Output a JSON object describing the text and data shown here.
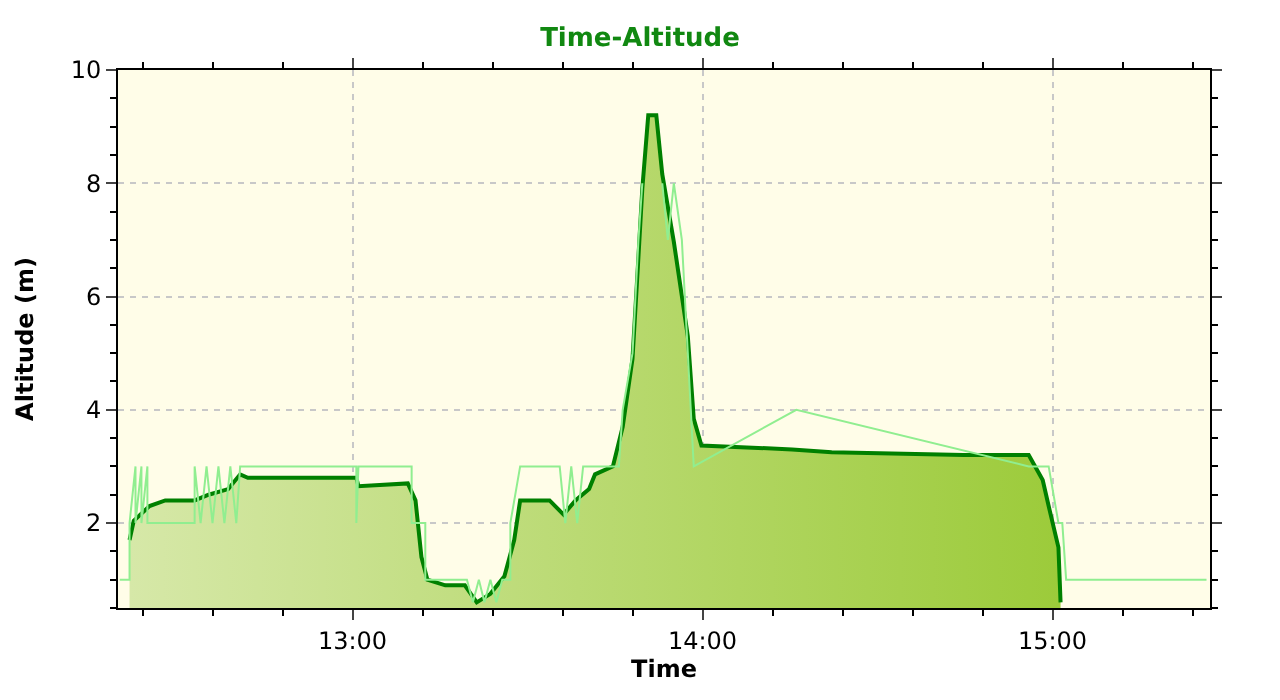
{
  "chart_data": {
    "type": "area",
    "title": "Time-Altitude",
    "xlabel": "Time",
    "ylabel": "Altitude (m)",
    "xlim": [
      12.33,
      15.45
    ],
    "ylim": [
      0.5,
      10
    ],
    "xticks": [
      {
        "value": 13,
        "label": "13:00"
      },
      {
        "value": 14,
        "label": "14:00"
      },
      {
        "value": 15,
        "label": "15:00"
      }
    ],
    "yticks": [
      2,
      4,
      6,
      8,
      10
    ],
    "grid": true,
    "line_style": "solid",
    "series": [
      {
        "type": "line",
        "color": "#90ee90",
        "x": [
          12.335,
          12.363,
          12.363,
          12.38,
          12.38,
          12.397,
          12.397,
          12.414,
          12.414,
          12.465,
          12.549,
          12.549,
          12.566,
          12.583,
          12.6,
          12.617,
          12.634,
          12.651,
          12.668,
          12.679,
          13.011,
          13.011,
          13.017,
          13.169,
          13.169,
          13.208,
          13.208,
          13.327,
          13.344,
          13.361,
          13.377,
          13.394,
          13.411,
          13.428,
          13.451,
          13.451,
          13.479,
          13.592,
          13.608,
          13.625,
          13.642,
          13.659,
          13.761,
          13.772,
          13.8,
          13.817,
          13.828,
          13.834,
          13.868,
          13.885,
          13.901,
          13.918,
          13.941,
          13.958,
          13.975,
          14.268,
          14.932,
          14.989,
          15.017,
          15.028,
          15.039,
          15.44
        ],
        "values": [
          1,
          1,
          2,
          3,
          2,
          3,
          2,
          3,
          2,
          2,
          2,
          3,
          2,
          3,
          2,
          3,
          2,
          3,
          2,
          3,
          3,
          2,
          3,
          3,
          2,
          2,
          1,
          1,
          0.6,
          1,
          0.6,
          1,
          0.6,
          1,
          1,
          2,
          3,
          3,
          2,
          3,
          2,
          3,
          3,
          4,
          5,
          7,
          8,
          null,
          null,
          8,
          7,
          8,
          7,
          5,
          3,
          4,
          3,
          3,
          2,
          2,
          1,
          1
        ]
      },
      {
        "color": "#008000",
        "x": [
          12.363,
          12.375,
          12.42,
          12.465,
          12.549,
          12.589,
          12.645,
          12.679,
          12.701,
          13.011,
          13.017,
          13.158,
          13.18,
          13.197,
          13.214,
          13.265,
          13.321,
          13.355,
          13.394,
          13.434,
          13.462,
          13.479,
          13.563,
          13.603,
          13.637,
          13.676,
          13.693,
          13.744,
          13.772,
          13.8,
          13.817,
          13.828,
          13.845,
          13.868,
          13.885,
          13.918,
          13.958,
          13.975,
          13.997,
          14.256,
          14.369,
          14.746,
          14.932,
          14.972,
          14.989,
          15.017,
          15.023
        ],
        "values": [
          1.7,
          2.04,
          2.3,
          2.4,
          2.4,
          2.5,
          2.6,
          2.86,
          2.8,
          2.8,
          2.65,
          2.7,
          2.4,
          1.4,
          1.0,
          0.9,
          0.9,
          0.6,
          0.75,
          1.06,
          1.7,
          2.4,
          2.4,
          2.15,
          2.4,
          2.6,
          2.86,
          3.0,
          3.7,
          4.9,
          6.7,
          7.9,
          9.2,
          9.2,
          8.16,
          6.97,
          5.3,
          3.84,
          3.37,
          3.3,
          3.25,
          3.2,
          3.2,
          2.76,
          2.3,
          1.57,
          0.6
        ]
      }
    ]
  }
}
